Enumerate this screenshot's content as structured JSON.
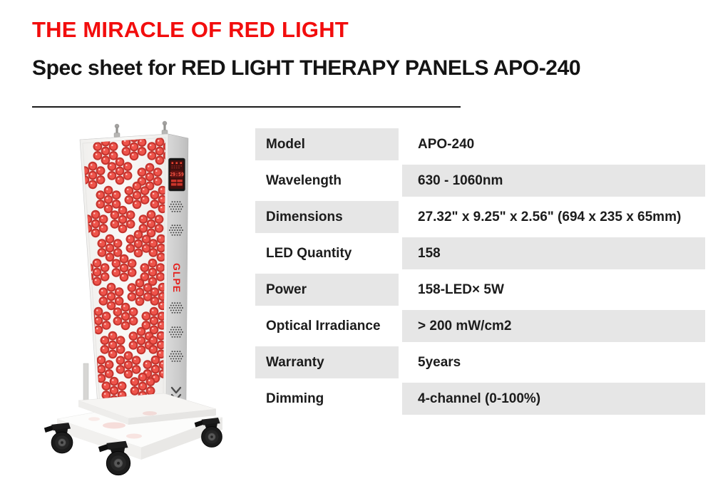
{
  "header": {
    "tagline": "THE MIRACLE OF RED LIGHT",
    "title": "Spec sheet for RED LIGHT THERAPY PANELS APO-240"
  },
  "product": {
    "alt": "APO-240 red light therapy panel on wheeled stand",
    "display_time": "29:59",
    "logo": "GLPE"
  },
  "specs": {
    "rows": [
      {
        "label": "Model",
        "value": "APO-240"
      },
      {
        "label": "Wavelength",
        "value": "630 - 1060nm"
      },
      {
        "label": "Dimensions",
        "value": "27.32\" x 9.25\" x 2.56\" (694 x 235 x 65mm)"
      },
      {
        "label": "LED Quantity",
        "value": "158"
      },
      {
        "label": "Power",
        "value": "158-LED× 5W"
      },
      {
        "label": "Optical Irradiance",
        "value": "> 200 mW/cm2"
      },
      {
        "label": "Warranty",
        "value": "5years"
      },
      {
        "label": "Dimming",
        "value": "4-channel (0-100%)"
      }
    ]
  },
  "colors": {
    "accent_red": "#f20d0d",
    "row_gray": "#e6e6e6",
    "text": "#1c1c1c"
  }
}
